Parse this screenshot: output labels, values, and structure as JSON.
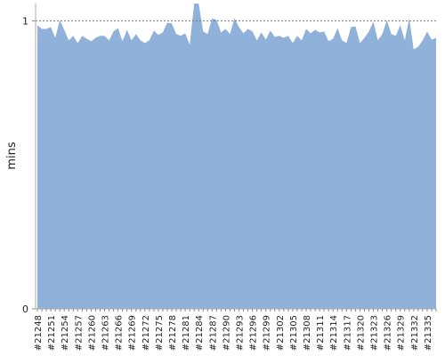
{
  "chart_data": {
    "type": "area",
    "y_label": "mins",
    "color": "#90b1da",
    "categories": [
      "#21248",
      null,
      null,
      "#21251",
      null,
      null,
      "#21254",
      null,
      null,
      "#21257",
      null,
      null,
      "#21260",
      null,
      null,
      "#21263",
      null,
      null,
      "#21266",
      null,
      null,
      "#21269",
      null,
      null,
      "#21272",
      null,
      null,
      "#21275",
      null,
      null,
      "#21278",
      null,
      null,
      "#21281",
      null,
      null,
      "#21284",
      null,
      null,
      "#21287",
      null,
      null,
      "#21290",
      null,
      null,
      "#21293",
      null,
      null,
      "#21296",
      null,
      null,
      "#21299",
      null,
      null,
      "#21302",
      null,
      null,
      "#21305",
      null,
      null,
      "#21308",
      null,
      null,
      "#21311",
      null,
      null,
      "#21314",
      null,
      null,
      "#21317",
      null,
      null,
      "#21320",
      null,
      null,
      "#21323",
      null,
      null,
      "#21326",
      null,
      null,
      "#21329",
      null,
      null,
      "#21332",
      null,
      null,
      "#21335",
      null,
      null
    ],
    "values": [
      0.985,
      0.972,
      0.972,
      0.978,
      0.941,
      1.003,
      0.969,
      0.932,
      0.948,
      0.923,
      0.948,
      0.938,
      0.929,
      0.941,
      0.948,
      0.948,
      0.932,
      0.963,
      0.975,
      0.929,
      0.969,
      0.932,
      0.954,
      0.932,
      0.923,
      0.932,
      0.966,
      0.951,
      0.96,
      0.994,
      0.991,
      0.954,
      0.948,
      0.957,
      0.917,
      1.06,
      1.06,
      0.963,
      0.954,
      1.009,
      1.003,
      0.96,
      0.972,
      0.954,
      1.009,
      0.978,
      0.957,
      0.972,
      0.963,
      0.932,
      0.96,
      0.935,
      0.966,
      0.944,
      0.948,
      0.941,
      0.948,
      0.923,
      0.948,
      0.932,
      0.972,
      0.957,
      0.969,
      0.96,
      0.963,
      0.929,
      0.938,
      0.975,
      0.932,
      0.923,
      0.978,
      0.981,
      0.923,
      0.941,
      0.963,
      0.997,
      0.932,
      0.954,
      1.003,
      0.954,
      0.948,
      0.985,
      0.932,
      1.009,
      0.901,
      0.91,
      0.932,
      0.963,
      0.935,
      0.941
    ],
    "ylim": [
      0,
      1.06
    ],
    "yticks": [
      0,
      1
    ],
    "grid": true
  }
}
